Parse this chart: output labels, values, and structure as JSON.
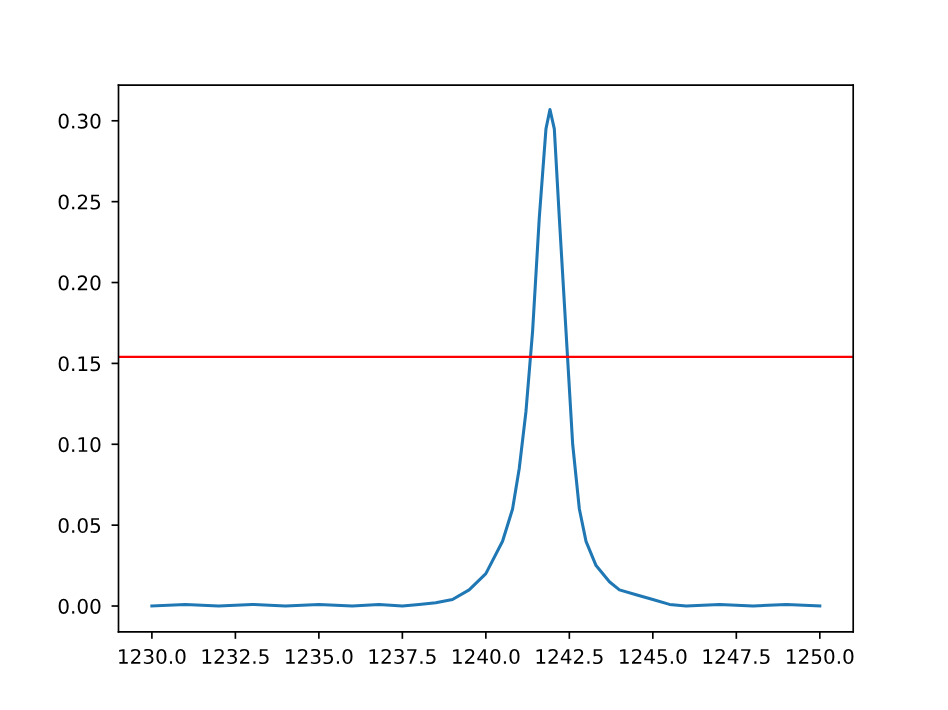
{
  "chart_data": {
    "type": "line",
    "series": [
      {
        "color": "#1f77b4",
        "x": [
          1230,
          1231,
          1232,
          1233,
          1234,
          1235,
          1236,
          1236.8,
          1237.5,
          1238,
          1238.5,
          1239,
          1239.5,
          1240,
          1240.5,
          1240.8,
          1241,
          1241.2,
          1241.4,
          1241.6,
          1241.8,
          1241.92,
          1242.05,
          1242.2,
          1242.4,
          1242.6,
          1242.8,
          1243,
          1243.3,
          1243.7,
          1244,
          1244.5,
          1245,
          1245.5,
          1246,
          1247,
          1248,
          1249,
          1250
        ],
        "values": [
          0,
          0.001,
          0,
          0.001,
          0,
          0.001,
          0,
          0.001,
          0,
          0.001,
          0.002,
          0.004,
          0.01,
          0.02,
          0.04,
          0.06,
          0.085,
          0.12,
          0.17,
          0.24,
          0.295,
          0.307,
          0.295,
          0.24,
          0.17,
          0.1,
          0.06,
          0.04,
          0.025,
          0.015,
          0.01,
          0.007,
          0.004,
          0.001,
          0,
          0.001,
          0,
          0.001,
          0
        ]
      }
    ],
    "ref_lines": [
      {
        "axis": "y",
        "value": 0.154,
        "color": "#ff0000"
      }
    ],
    "xlim": [
      1229,
      1251
    ],
    "ylim": [
      -0.016,
      0.322
    ],
    "xticks": [
      {
        "value": 1230,
        "label": "1230.0"
      },
      {
        "value": 1232.5,
        "label": "1232.5"
      },
      {
        "value": 1235,
        "label": "1235.0"
      },
      {
        "value": 1237.5,
        "label": "1237.5"
      },
      {
        "value": 1240,
        "label": "1240.0"
      },
      {
        "value": 1242.5,
        "label": "1242.5"
      },
      {
        "value": 1245,
        "label": "1245.0"
      },
      {
        "value": 1247.5,
        "label": "1247.5"
      },
      {
        "value": 1250,
        "label": "1250.0"
      }
    ],
    "yticks": [
      {
        "value": 0,
        "label": "0.00"
      },
      {
        "value": 0.05,
        "label": "0.05"
      },
      {
        "value": 0.1,
        "label": "0.10"
      },
      {
        "value": 0.15,
        "label": "0.15"
      },
      {
        "value": 0.2,
        "label": "0.20"
      },
      {
        "value": 0.25,
        "label": "0.25"
      },
      {
        "value": 0.3,
        "label": "0.30"
      }
    ],
    "grid": false,
    "legend": false
  }
}
